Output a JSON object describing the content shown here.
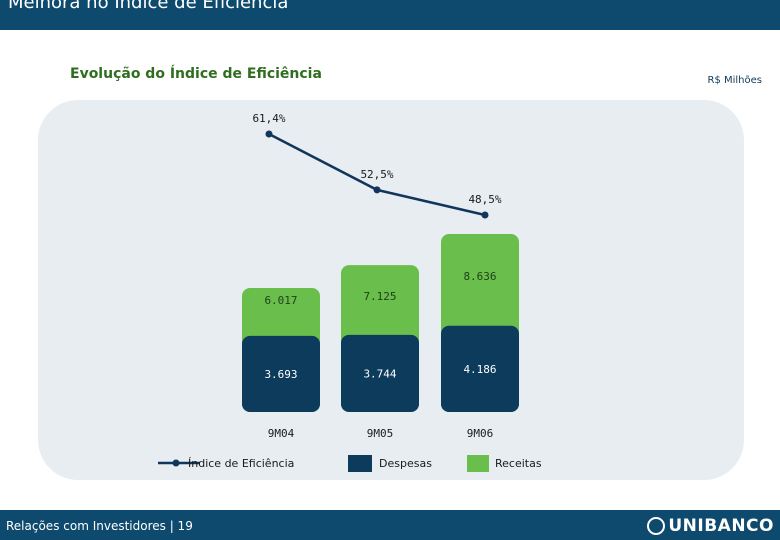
{
  "header": {
    "title": "Melhora no Índice de Eficiência"
  },
  "subtitle": "Evolução do Índice de Eficiência",
  "unit": "R$ Milhões",
  "footer": {
    "text": "Relações com Investidores | 19",
    "logo": "UNIBANCO"
  },
  "colors": {
    "despesas": "#0d3b5c",
    "receitas": "#6abe4b",
    "line": "#12355b",
    "panel": "#e8edf1",
    "brand": "#0d4a6e"
  },
  "chart_data": {
    "type": "bar",
    "categories": [
      "9M04",
      "9M05",
      "9M06"
    ],
    "series": [
      {
        "name": "Despesas",
        "values": [
          3693,
          3744,
          4186
        ],
        "labels": [
          "3.693",
          "3.744",
          "4.186"
        ]
      },
      {
        "name": "Receitas",
        "values": [
          6017,
          7125,
          8636
        ],
        "labels": [
          "6.017",
          "7.125",
          "8.636"
        ]
      },
      {
        "name": "Índice de Eficiência",
        "type": "line",
        "values": [
          61.4,
          52.5,
          48.5
        ],
        "labels": [
          "61,4%",
          "52,5%",
          "48,5%"
        ]
      }
    ]
  }
}
